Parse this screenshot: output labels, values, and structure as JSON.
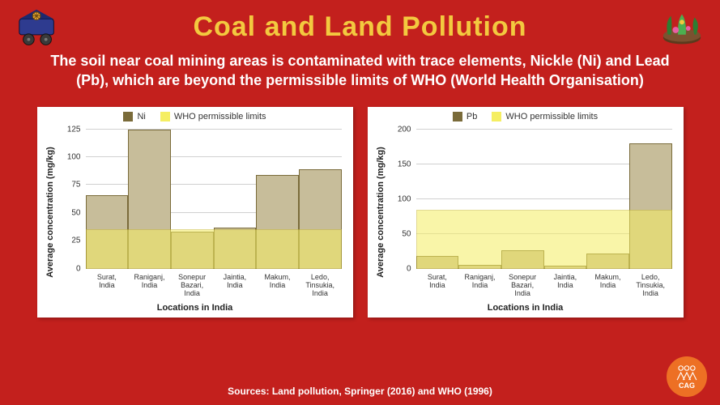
{
  "title": "Coal and Land Pollution",
  "title_color": "#f3c93f",
  "subtitle": "The soil near coal mining areas is contaminated with trace elements, Nickle (Ni) and Lead (Pb), which are beyond the permissible limits of WHO (World Health Organisation)",
  "background_color": "#c3201d",
  "source_text": "Sources: Land pollution, Springer (2016) and WHO (1996)",
  "charts": [
    {
      "type": "bar",
      "series_name": "Ni",
      "series_color": "#c7bd9a",
      "series_border": "#7a6b3a",
      "limit_name": "WHO permissible limits",
      "limit_color": "#f5ee62",
      "limit_opacity": 0.55,
      "limit_value": 35,
      "ylabel": "Average concentration (mg/kg)",
      "xlabel": "Locations in India",
      "ylim": [
        0,
        125
      ],
      "ytick_step": 25,
      "categories": [
        "Surat, India",
        "Raniganj, India",
        "Sonepur Bazari, India",
        "Jaintia, India",
        "Makum, India",
        "Ledo, Tinsukia, India"
      ],
      "values": [
        66,
        125,
        33,
        37,
        84,
        89
      ],
      "panel_bg": "#ffffff",
      "grid_color": "#d0d0d0",
      "label_fontsize": 11
    },
    {
      "type": "bar",
      "series_name": "Pb",
      "series_color": "#c7bd9a",
      "series_border": "#7a6b3a",
      "limit_name": "WHO permissible limits",
      "limit_color": "#f5ee62",
      "limit_opacity": 0.55,
      "limit_value": 85,
      "ylabel": "Average concentration (mg/kg)",
      "xlabel": "Locations in India",
      "ylim": [
        0,
        200
      ],
      "ytick_step": 50,
      "categories": [
        "Surat, India",
        "Raniganj, India",
        "Sonepur Bazari, India",
        "Jaintia, India",
        "Makum, India",
        "Ledo, Tinsukia, India"
      ],
      "values": [
        18,
        5,
        26,
        4,
        22,
        180
      ],
      "panel_bg": "#ffffff",
      "grid_color": "#d0d0d0",
      "label_fontsize": 11
    }
  ],
  "icons": {
    "top_left": "mining-cart-icon",
    "top_right": "plants-icon",
    "bottom_right_badge": "CAG"
  }
}
